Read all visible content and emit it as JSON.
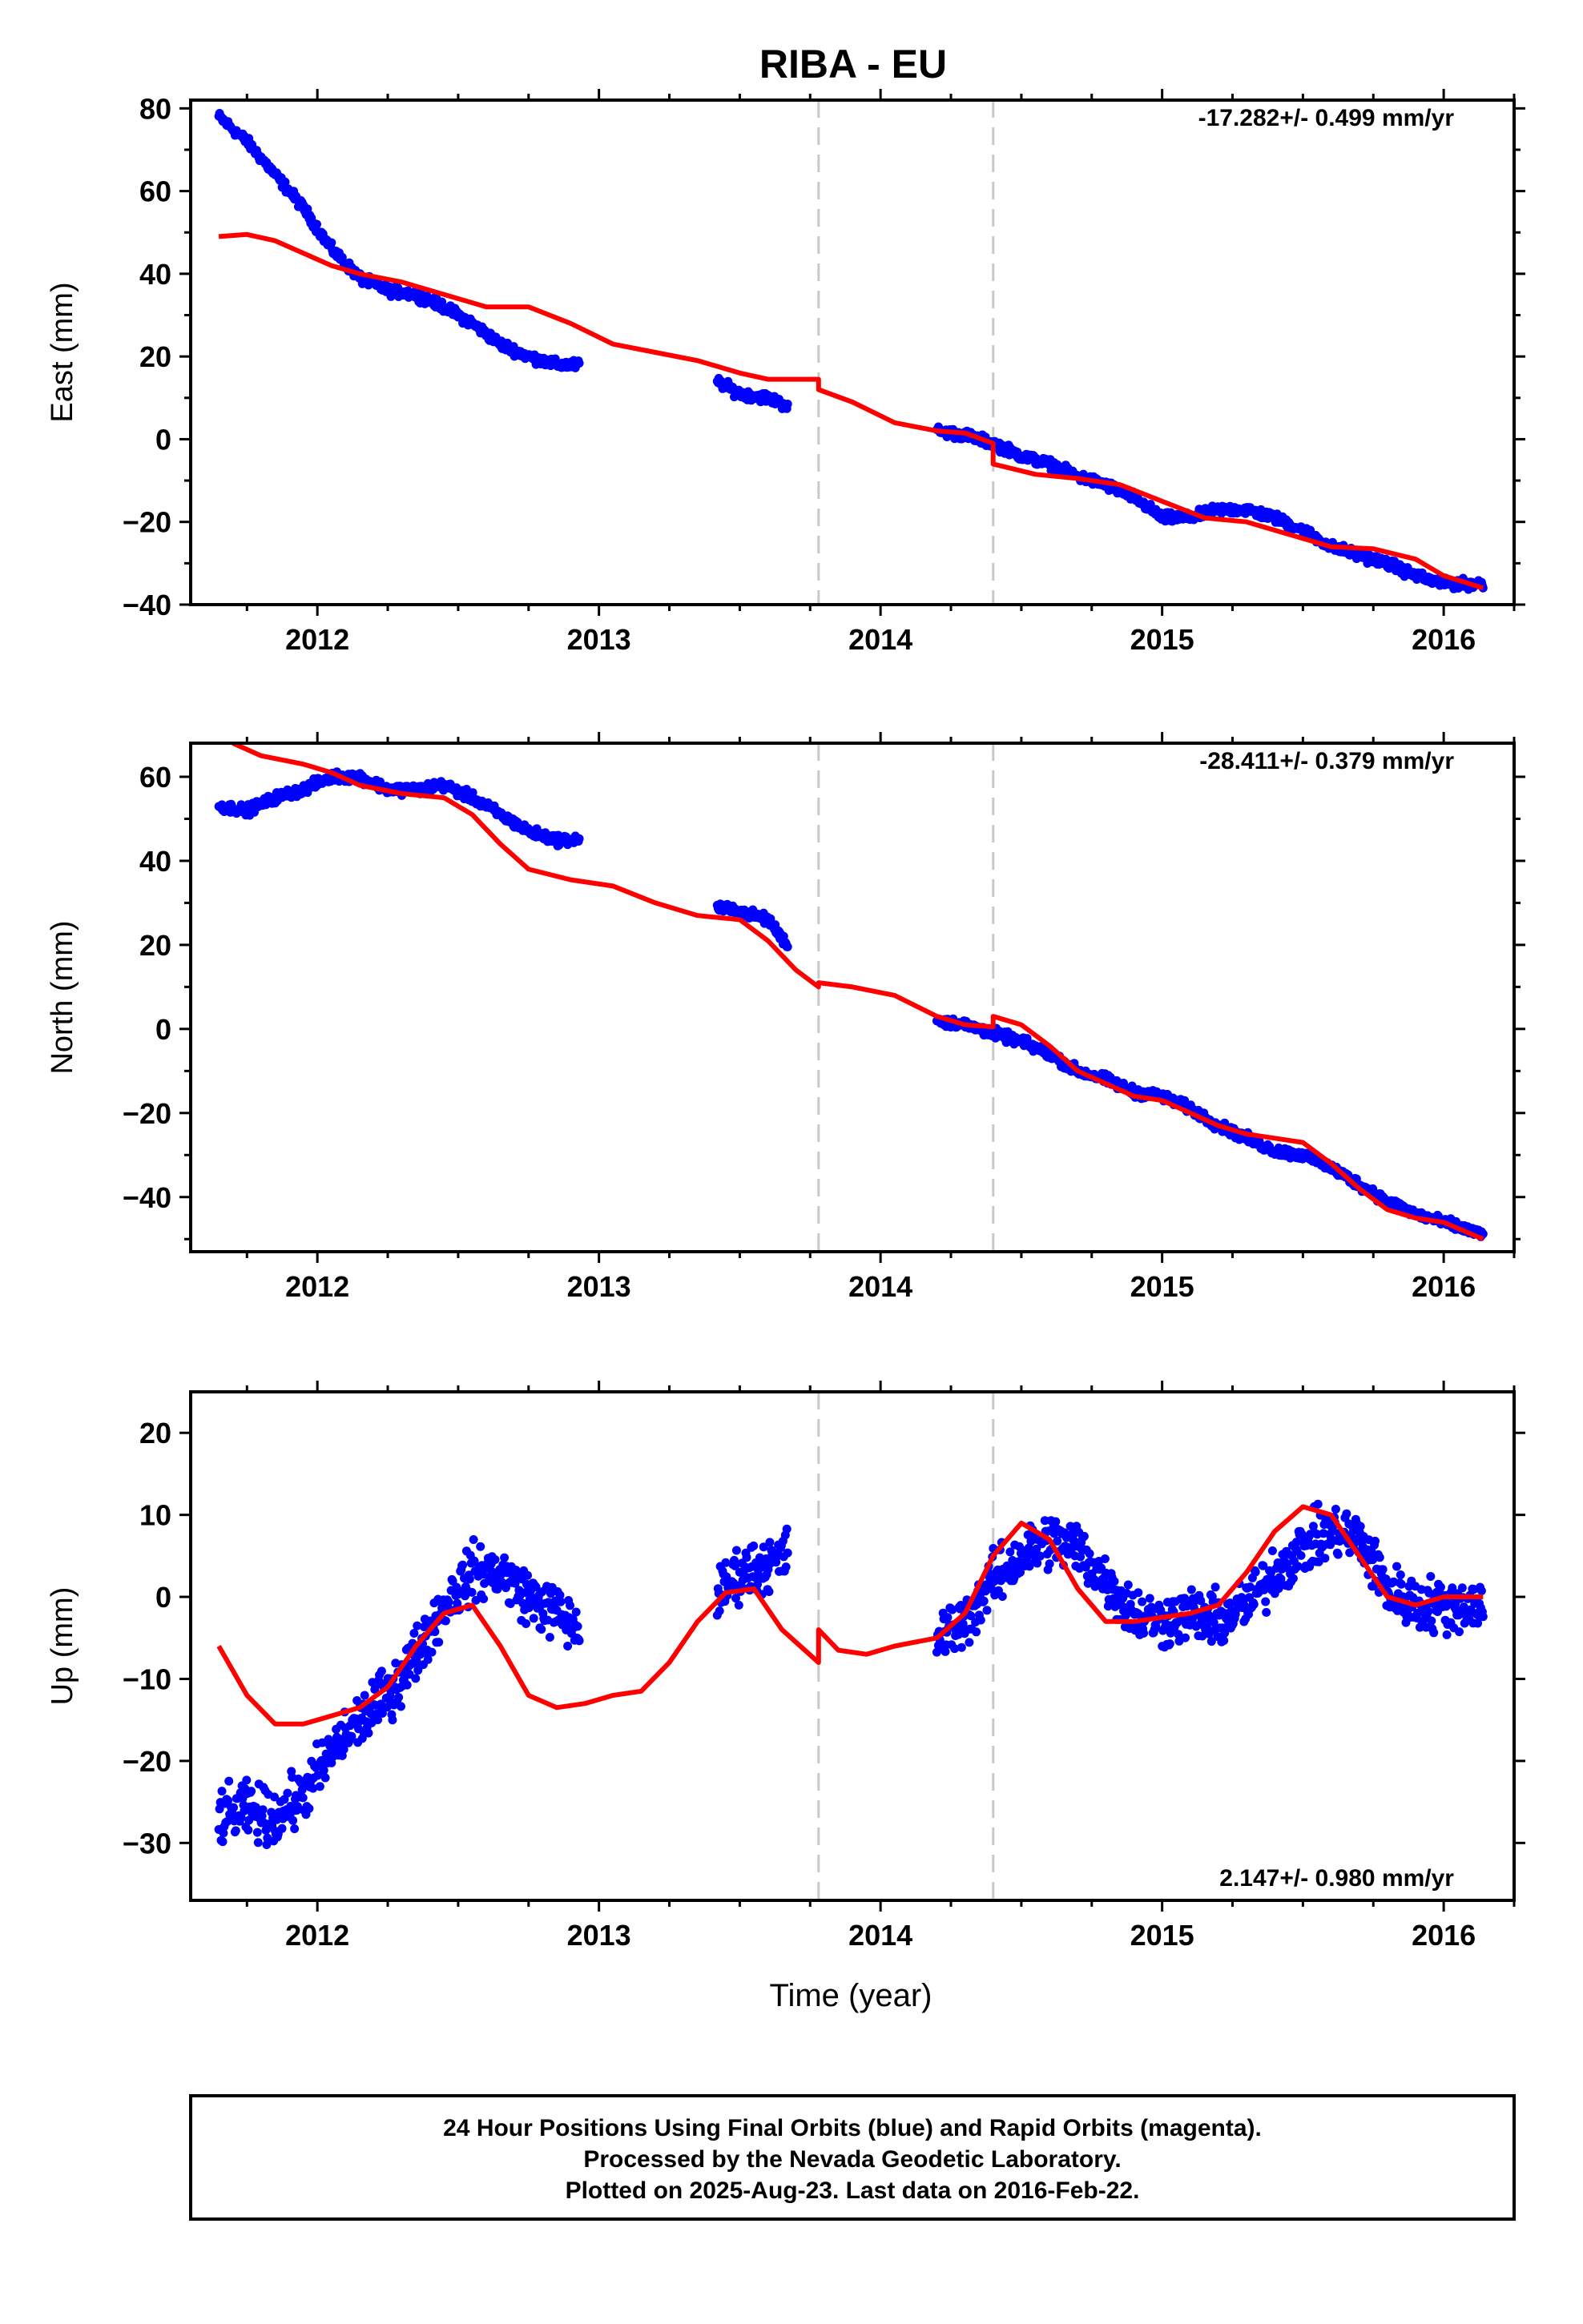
{
  "title": "RIBA - EU",
  "xlabel": "Time (year)",
  "x_ticks": [
    "2012",
    "2013",
    "2014",
    "2015",
    "2016"
  ],
  "footer": {
    "line1": "24 Hour Positions Using Final Orbits (blue) and Rapid Orbits (magenta).",
    "line2": "Processed by the Nevada Geodetic Laboratory.",
    "line3": "Plotted on 2025-Aug-23. Last data on 2016-Feb-22."
  },
  "colors": {
    "data": "#0000ff",
    "model": "#ff0000",
    "breaks": "#c8c8c8",
    "frame": "#000000"
  },
  "chart_data": [
    {
      "type": "scatter",
      "panel": "east",
      "ylabel": "East (mm)",
      "rate_label": "-17.282+/- 0.499 mm/yr",
      "xlim": [
        2011.55,
        2016.25
      ],
      "ylim": [
        -40,
        82
      ],
      "y_ticks": [
        80,
        60,
        40,
        20,
        0,
        -20,
        -40
      ],
      "y_tick_labels": [
        "80",
        "60",
        "40",
        "20",
        "0",
        "−20",
        "−40"
      ],
      "equipment_breaks": [
        2013.78,
        2014.4
      ],
      "series": [
        {
          "role": "data",
          "segments": [
            {
              "x": [
                2011.65,
                2011.75,
                2011.85,
                2011.95,
                2012.05,
                2012.15,
                2012.25,
                2012.35,
                2012.45,
                2012.55,
                2012.65,
                2012.75,
                2012.85,
                2012.93
              ],
              "y": [
                78,
                72,
                64,
                56,
                46,
                39,
                36,
                35,
                32,
                28,
                23,
                20,
                18,
                18
              ]
            },
            {
              "x": [
                2013.42,
                2013.5,
                2013.6,
                2013.67
              ],
              "y": [
                14,
                11,
                10,
                8
              ]
            },
            {
              "x": [
                2014.2,
                2014.3,
                2014.4,
                2014.5,
                2014.6,
                2014.7,
                2014.8,
                2014.9,
                2015.0,
                2015.1,
                2015.2,
                2015.3,
                2015.4,
                2015.5,
                2015.6,
                2015.7,
                2015.8,
                2015.9,
                2016.0,
                2016.14
              ],
              "y": [
                2,
                1,
                -1,
                -4,
                -6,
                -9,
                -11,
                -14,
                -19,
                -19,
                -17,
                -17,
                -19,
                -22,
                -26,
                -28,
                -30,
                -33,
                -35,
                -35
              ]
            }
          ]
        },
        {
          "role": "model",
          "segments": [
            {
              "x": [
                2011.65,
                2011.75,
                2011.85,
                2011.95,
                2012.05,
                2012.15,
                2012.3,
                2012.45,
                2012.6,
                2012.75,
                2012.9,
                2013.05,
                2013.2,
                2013.35,
                2013.5,
                2013.6,
                2013.7,
                2013.78
              ],
              "y": [
                49,
                49.5,
                48,
                45,
                42,
                40,
                38,
                35,
                32,
                32,
                28,
                23,
                21,
                19,
                16,
                14.5,
                14.5,
                14.5
              ]
            },
            {
              "x": [
                2013.78,
                2013.9,
                2014.05,
                2014.2,
                2014.3,
                2014.4
              ],
              "y": [
                12,
                9,
                4,
                2,
                1.5,
                -1
              ]
            },
            {
              "x": [
                2014.4,
                2014.55,
                2014.7,
                2014.85,
                2015.0,
                2015.15,
                2015.3,
                2015.45,
                2015.6,
                2015.75,
                2015.9,
                2016.0,
                2016.14
              ],
              "y": [
                -6,
                -8.5,
                -9.5,
                -11,
                -15,
                -19,
                -20,
                -23,
                -26,
                -26.5,
                -29,
                -33,
                -36
              ]
            }
          ]
        }
      ]
    },
    {
      "type": "scatter",
      "panel": "north",
      "ylabel": "North (mm)",
      "rate_label": "-28.411+/- 0.379 mm/yr",
      "xlim": [
        2011.55,
        2016.25
      ],
      "ylim": [
        -53,
        68
      ],
      "y_ticks": [
        60,
        40,
        20,
        0,
        -20,
        -40
      ],
      "y_tick_labels": [
        "60",
        "40",
        "20",
        "0",
        "−20",
        "−40"
      ],
      "equipment_breaks": [
        2013.78,
        2014.4
      ],
      "series": [
        {
          "role": "data",
          "segments": [
            {
              "x": [
                2011.65,
                2011.75,
                2011.85,
                2011.95,
                2012.05,
                2012.15,
                2012.25,
                2012.35,
                2012.45,
                2012.55,
                2012.65,
                2012.75,
                2012.85,
                2012.93
              ],
              "y": [
                53,
                52,
                55,
                57,
                60,
                60,
                57,
                57,
                58,
                55,
                51,
                47,
                45,
                45
              ]
            },
            {
              "x": [
                2013.42,
                2013.5,
                2013.6,
                2013.67
              ],
              "y": [
                29,
                28,
                26,
                20
              ]
            },
            {
              "x": [
                2014.2,
                2014.3,
                2014.4,
                2014.5,
                2014.6,
                2014.7,
                2014.8,
                2014.9,
                2015.0,
                2015.1,
                2015.2,
                2015.3,
                2015.4,
                2015.5,
                2015.6,
                2015.7,
                2015.8,
                2015.9,
                2016.0,
                2016.14
              ],
              "y": [
                2,
                1,
                -1,
                -3,
                -6,
                -10,
                -12,
                -15,
                -16,
                -19,
                -23,
                -26,
                -29,
                -30,
                -33,
                -37,
                -41,
                -44,
                -46,
                -49
              ]
            }
          ]
        },
        {
          "role": "model",
          "segments": [
            {
              "x": [
                2011.7,
                2011.8,
                2011.95,
                2012.05,
                2012.15,
                2012.3,
                2012.45,
                2012.55,
                2012.65,
                2012.75,
                2012.9,
                2013.05,
                2013.2,
                2013.35,
                2013.5,
                2013.6,
                2013.7,
                2013.78
              ],
              "y": [
                68,
                65,
                63,
                61,
                58,
                56,
                55,
                51,
                44,
                38,
                35.5,
                34,
                30,
                27,
                26,
                21,
                14,
                10
              ]
            },
            {
              "x": [
                2013.78,
                2013.9,
                2014.05,
                2014.2,
                2014.3,
                2014.4
              ],
              "y": [
                11,
                10,
                8,
                3,
                1,
                0.5
              ]
            },
            {
              "x": [
                2014.4,
                2014.5,
                2014.6,
                2014.7,
                2014.8,
                2014.9,
                2015.0,
                2015.1,
                2015.2,
                2015.3,
                2015.4,
                2015.5,
                2015.6,
                2015.7,
                2015.8,
                2015.9,
                2016.0,
                2016.14
              ],
              "y": [
                3,
                1,
                -4,
                -10,
                -13,
                -16,
                -17,
                -20,
                -23,
                -25,
                -26,
                -27,
                -32,
                -38,
                -43,
                -45,
                -46,
                -50
              ]
            }
          ]
        }
      ]
    },
    {
      "type": "scatter",
      "panel": "up",
      "ylabel": "Up (mm)",
      "rate_label": "2.147+/- 0.980 mm/yr",
      "xlim": [
        2011.55,
        2016.25
      ],
      "ylim": [
        -37,
        25
      ],
      "y_ticks": [
        20,
        10,
        0,
        -10,
        -20,
        -30
      ],
      "y_tick_labels": [
        "20",
        "10",
        "0",
        "−10",
        "−20",
        "−30"
      ],
      "equipment_breaks": [
        2013.78,
        2014.4
      ],
      "series": [
        {
          "role": "data",
          "segments": [
            {
              "x": [
                2011.65,
                2011.75,
                2011.85,
                2011.95,
                2012.05,
                2012.15,
                2012.25,
                2012.35,
                2012.45,
                2012.55,
                2012.65,
                2012.75,
                2012.85,
                2012.93
              ],
              "y": [
                -27,
                -26,
                -27,
                -24,
                -19,
                -15,
                -12,
                -7,
                -1,
                3,
                3,
                0,
                -2,
                -4
              ]
            },
            {
              "x": [
                2013.42,
                2013.5,
                2013.6,
                2013.67
              ],
              "y": [
                0,
                3,
                4,
                5
              ]
            },
            {
              "x": [
                2014.2,
                2014.3,
                2014.4,
                2014.5,
                2014.6,
                2014.7,
                2014.8,
                2014.9,
                2015.0,
                2015.1,
                2015.2,
                2015.3,
                2015.4,
                2015.5,
                2015.6,
                2015.7,
                2015.8,
                2015.9,
                2016.0,
                2016.14
              ],
              "y": [
                -5,
                -3,
                2,
                5,
                7,
                6,
                2,
                -2,
                -3,
                -2,
                -3,
                -1,
                3,
                6,
                8,
                7,
                1,
                -1,
                -1,
                -1
              ]
            }
          ]
        },
        {
          "role": "model",
          "segments": [
            {
              "x": [
                2011.65,
                2011.75,
                2011.85,
                2011.95,
                2012.05,
                2012.15,
                2012.25,
                2012.35,
                2012.45,
                2012.55,
                2012.65,
                2012.75,
                2012.85,
                2012.95,
                2013.05,
                2013.15,
                2013.25,
                2013.35,
                2013.45,
                2013.55,
                2013.65,
                2013.78
              ],
              "y": [
                -6,
                -12,
                -15.5,
                -15.5,
                -14.5,
                -13.5,
                -11,
                -6,
                -2,
                -1,
                -6,
                -12,
                -13.5,
                -13,
                -12,
                -11.5,
                -8,
                -3,
                0.5,
                1,
                -4,
                -8
              ]
            },
            {
              "x": [
                2013.78,
                2013.85,
                2013.95,
                2014.05,
                2014.2,
                2014.3,
                2014.4,
                2014.5,
                2014.6,
                2014.7,
                2014.8,
                2014.9,
                2015.0,
                2015.1,
                2015.2,
                2015.3,
                2015.4,
                2015.5,
                2015.6,
                2015.7,
                2015.8,
                2015.9,
                2016.0,
                2016.14
              ],
              "y": [
                -4,
                -6.5,
                -7,
                -6,
                -5,
                -2,
                5,
                9,
                7,
                1,
                -3,
                -3,
                -2.5,
                -2,
                -1,
                3,
                8,
                11,
                10,
                5,
                0,
                -1,
                0,
                0
              ]
            }
          ]
        }
      ]
    }
  ]
}
